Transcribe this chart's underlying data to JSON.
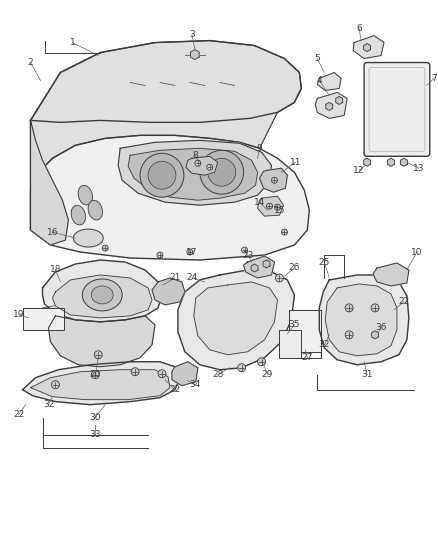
{
  "bg_color": "#ffffff",
  "line_color": "#3a3a3a",
  "fill_light": "#f0f0f0",
  "fill_mid": "#e0e0e0",
  "fill_dark": "#c8c8c8",
  "text_color": "#3a3a3a",
  "fig_width": 4.38,
  "fig_height": 5.33,
  "dpi": 100
}
